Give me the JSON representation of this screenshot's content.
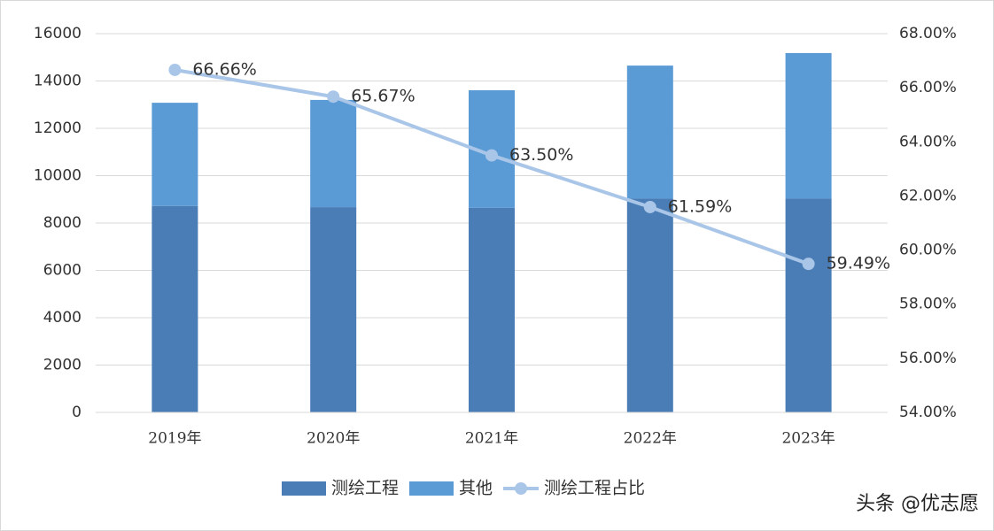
{
  "chart_data": {
    "type": "bar-line",
    "categories": [
      "2019年",
      "2020年",
      "2021年",
      "2022年",
      "2023年"
    ],
    "series": [
      {
        "name": "测绘工程",
        "color": "#4a7db5",
        "values": [
          8720,
          8670,
          8640,
          9030,
          9030
        ]
      },
      {
        "name": "其他",
        "color": "#5b9bd5",
        "values": [
          4360,
          4530,
          4970,
          5620,
          6150
        ]
      },
      {
        "name": "测绘工程占比",
        "color": "#a9c6e8",
        "axis": "y2",
        "values": [
          66.66,
          65.67,
          63.5,
          61.59,
          59.49
        ],
        "value_labels": [
          "66.66%",
          "65.67%",
          "63.50%",
          "61.59%",
          "59.49%"
        ]
      }
    ],
    "ylim": [
      0,
      16000
    ],
    "yticks": [
      0,
      2000,
      4000,
      6000,
      8000,
      10000,
      12000,
      14000,
      16000
    ],
    "y2lim": [
      54,
      68
    ],
    "y2ticks": [
      {
        "value": 54,
        "label": "54.00%"
      },
      {
        "value": 56,
        "label": "56.00%"
      },
      {
        "value": 58,
        "label": "58.00%"
      },
      {
        "value": 60,
        "label": "60.00%"
      },
      {
        "value": 62,
        "label": "62.00%"
      },
      {
        "value": 64,
        "label": "64.00%"
      },
      {
        "value": 66,
        "label": "66.00%"
      },
      {
        "value": 68,
        "label": "68.00%"
      }
    ],
    "grid": true,
    "watermark": "头条 @优志愿"
  }
}
